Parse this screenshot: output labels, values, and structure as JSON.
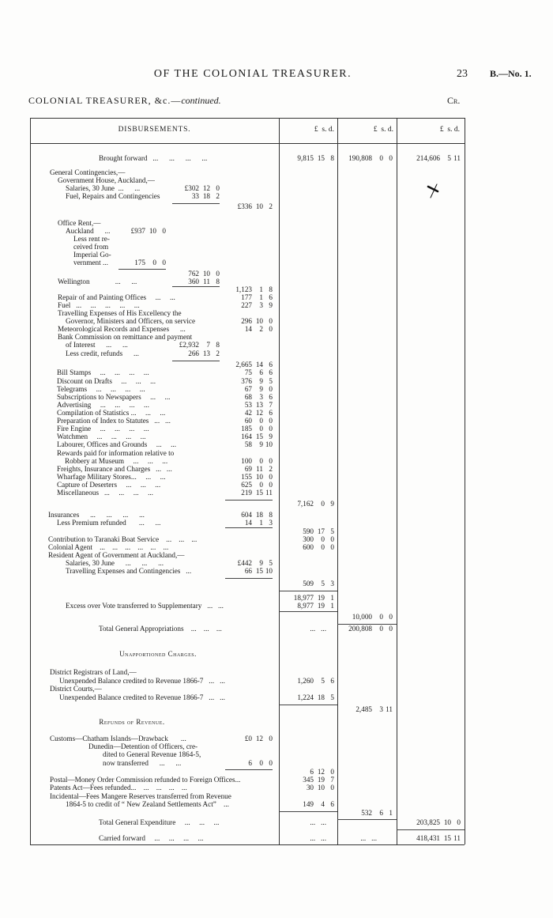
{
  "page_header": {
    "title": "OF THE COLONIAL TREASURER.",
    "page_number": "23",
    "reference": "B.—No. 1."
  },
  "sub_header": {
    "left": "COLONIAL TREASURER, &c.—",
    "left_italic": "continued.",
    "right": "Cr."
  },
  "table": {
    "header": {
      "description": "DISBURSEMENTS.",
      "columns": [
        "£  s. d.",
        "£  s. d.",
        "£  s. d."
      ]
    },
    "rows": [
      {
        "label": "Brought forward   ...      ...      ...      ...",
        "c1": [
          "9,815",
          "15",
          "8"
        ],
        "c2": [
          "190,808",
          "0",
          "0"
        ],
        "c3": [
          "214,606",
          "5",
          "11"
        ]
      },
      {
        "label": "General Contingencies,—"
      },
      {
        "label": "Government House, Auckland,—"
      },
      {
        "label": "Salaries, 30 June  ...      ...",
        "mid": [
          "£302",
          "12",
          "0"
        ]
      },
      {
        "label": "Fuel, Repairs and Contingencies",
        "mid": [
          "33",
          "18",
          "2"
        ]
      },
      {
        "outer": [
          "£336",
          "10",
          "2"
        ]
      },
      {
        "label": "Office Rent,—"
      },
      {
        "label": "Auckland      ...",
        "inner": [
          "£937",
          "10",
          "0"
        ]
      },
      {
        "label": "Less rent re-"
      },
      {
        "label": "ceived from"
      },
      {
        "label": "Imperial Go-"
      },
      {
        "label": "vernment ...",
        "inner": [
          "175",
          "0",
          "0"
        ]
      },
      {
        "mid": [
          "762",
          "10",
          "0"
        ]
      },
      {
        "label": "Wellington              ...      ...",
        "mid": [
          "360",
          "11",
          "8"
        ]
      },
      {
        "outer": [
          "1,123",
          "1",
          "8"
        ]
      },
      {
        "label": "Repair of and Painting Offices     ...     ...",
        "outer": [
          "177",
          "1",
          "6"
        ]
      },
      {
        "label": "Fuel   ...     ...     ...     ...     ...",
        "outer": [
          "227",
          "3",
          "9"
        ]
      },
      {
        "label": "Travelling Expenses of His Excellency the"
      },
      {
        "label": "Governor, Ministers and Officers, on service",
        "outer": [
          "296",
          "10",
          "0"
        ]
      },
      {
        "label": "Meteorological Records and Expenses      ...",
        "outer": [
          "14",
          "2",
          "0"
        ]
      },
      {
        "label": "Bank Commission on remittance and payment"
      },
      {
        "label": "of Interest      ...      ...",
        "mid": [
          "£2,932",
          "7",
          "8"
        ]
      },
      {
        "label": "Less credit, refunds      ...",
        "mid": [
          "266",
          "13",
          "2"
        ]
      },
      {
        "outer": [
          "2,665",
          "14",
          "6"
        ]
      },
      {
        "label": "Bill Stamps     ...     ...     ...     ...",
        "outer": [
          "75",
          "6",
          "6"
        ]
      },
      {
        "label": "Discount on Drafts     ...     ...     ...",
        "outer": [
          "376",
          "9",
          "5"
        ]
      },
      {
        "label": "Telegrams     ...     ...     ...     ...",
        "outer": [
          "67",
          "9",
          "0"
        ]
      },
      {
        "label": "Subscriptions to Newspapers     ...     ...",
        "outer": [
          "68",
          "3",
          "6"
        ]
      },
      {
        "label": "Advertising     ...     ...     ...     ...",
        "outer": [
          "53",
          "13",
          "7"
        ]
      },
      {
        "label": "Compilation of Statistics ...     ...     ...",
        "outer": [
          "42",
          "12",
          "6"
        ]
      },
      {
        "label": "Preparation of Index to Statutes   ...   ...",
        "outer": [
          "60",
          "0",
          "0"
        ]
      },
      {
        "label": "Fire Engine     ...     ...     ...     ...",
        "outer": [
          "185",
          "0",
          "0"
        ]
      },
      {
        "label": "Watchmen     ...     ...     ...     ...",
        "outer": [
          "164",
          "15",
          "9"
        ]
      },
      {
        "label": "Labourer, Offices and Grounds     ...     ...",
        "outer": [
          "58",
          "9",
          "10"
        ]
      },
      {
        "label": "Rewards paid for information relative to"
      },
      {
        "label": "Robbery at Museum     ...     ...     ...",
        "outer": [
          "100",
          "0",
          "0"
        ]
      },
      {
        "label": "Freights, Insurance and Charges   ...   ...",
        "outer": [
          "69",
          "11",
          "2"
        ]
      },
      {
        "label": "Wharfage Military Stores...     ...     ...",
        "outer": [
          "155",
          "10",
          "0"
        ]
      },
      {
        "label": "Capture of Deserters     ...     ...     ...",
        "outer": [
          "625",
          "0",
          "0"
        ]
      },
      {
        "label": "Miscellaneous   ...     ...     ...     ...",
        "outer": [
          "219",
          "15",
          "11"
        ]
      },
      {
        "c1": [
          "7,162",
          "0",
          "9"
        ]
      },
      {
        "label": "Insurances      ...      ...      ...      ...",
        "outer": [
          "604",
          "18",
          "8"
        ]
      },
      {
        "label": "Less Premium refunded       ...      ...",
        "outer": [
          "14",
          "1",
          "3"
        ]
      },
      {
        "c1": [
          "590",
          "17",
          "5"
        ]
      },
      {
        "label": "Contribution to Taranaki Boat Service    ...    ...    ...",
        "c1": [
          "300",
          "0",
          "0"
        ]
      },
      {
        "label": "Colonial Agent    ...    ...    ...    ...    ...    ...",
        "c1": [
          "600",
          "0",
          "0"
        ]
      },
      {
        "label": "Resident Agent of Government at Auckland,—"
      },
      {
        "label": "Salaries, 30 June      ...      ...      ...",
        "outer": [
          "£442",
          "9",
          "5"
        ]
      },
      {
        "label": "Travelling Expenses and Contingencies   ...",
        "outer": [
          "66",
          "15",
          "10"
        ]
      },
      {
        "c1": [
          "509",
          "5",
          "3"
        ]
      },
      {
        "c1": [
          "18,977",
          "19",
          "1"
        ]
      },
      {
        "label": "Excess over Vote transferred to Supplementary   ...   ...",
        "c1": [
          "8,977",
          "19",
          "1"
        ]
      },
      {
        "c2": [
          "10,000",
          "0",
          "0"
        ]
      },
      {
        "label": "Total General Appropriations    ...    ...    ...",
        "c1_text": "...   ...",
        "c2": [
          "200,808",
          "0",
          "0"
        ]
      },
      {
        "heading": "Unapportioned Charges."
      },
      {
        "label": "District Registrars of Land,—"
      },
      {
        "label": "Unexpended Balance credited to Revenue 1866-7   ...   ...",
        "c1": [
          "1,260",
          "5",
          "6"
        ]
      },
      {
        "label": "District Courts,—"
      },
      {
        "label": "Unexpended Balance credited to Revenue 1866-7   ...   ...",
        "c1": [
          "1,224",
          "18",
          "5"
        ]
      },
      {
        "c2": [
          "2,485",
          "3",
          "11"
        ]
      },
      {
        "heading": "Refunds of Revenue."
      },
      {
        "label": "Customs—Chatham Islands—Drawback       ...",
        "outer": [
          "£0",
          "12",
          "0"
        ]
      },
      {
        "label": "Dunedin—Detention of Officers, cre-"
      },
      {
        "label": "dited to General Revenue 1864-5,"
      },
      {
        "label": "now transferred      ...      ...",
        "outer": [
          "6",
          "0",
          "0"
        ]
      },
      {
        "c1": [
          "6",
          "12",
          "0"
        ]
      },
      {
        "label": "Postal—Money Order Commission refunded to Foreign Offices...",
        "c1": [
          "345",
          "19",
          "7"
        ]
      },
      {
        "label": "Patents Act—Fees refunded...    ...    ...    ...    ...",
        "c1": [
          "30",
          "10",
          "0"
        ]
      },
      {
        "label": "Incidental—Fees Mangere Reserves transferred from Revenue"
      },
      {
        "label": "1864-5 to credit of “ New Zealand Settlements Act”    ...",
        "c1": [
          "149",
          "4",
          "6"
        ]
      },
      {
        "c2": [
          "532",
          "6",
          "1"
        ]
      },
      {
        "label": "Total General Expenditure     ...     ...     ...",
        "c1_text": "...   ...",
        "c3": [
          "203,825",
          "10",
          "0"
        ]
      },
      {
        "label": "Carried forward     ...     ...     ...     ...",
        "c1_text": "...   ...",
        "c2_text": "...   ...",
        "c3": [
          "418,431",
          "15",
          "11"
        ]
      }
    ]
  },
  "annotations": {
    "handwritten_mark": "check-mark"
  }
}
